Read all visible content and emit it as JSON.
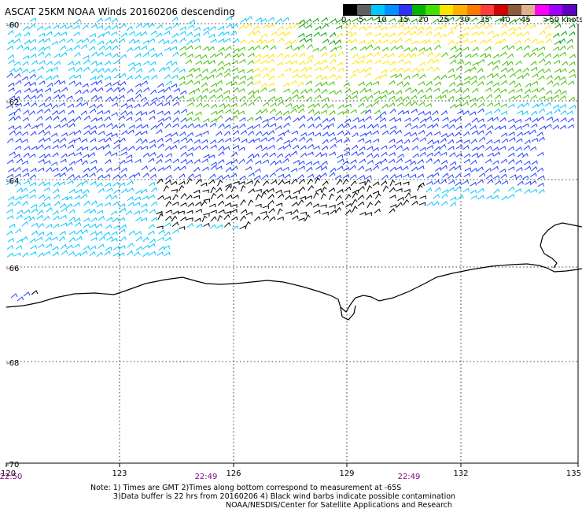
{
  "title": "ASCAT 25KM NOAA Winds 20160206 descending",
  "legend": {
    "colors": [
      "#000000",
      "#606060",
      "#00c8ff",
      "#0090ff",
      "#3030ff",
      "#00b400",
      "#40e000",
      "#ffe400",
      "#ffb000",
      "#ff7800",
      "#ff3c3c",
      "#d20000",
      "#8c5a3c",
      "#e0b090",
      "#ff00ff",
      "#a000ff",
      "#6000c0"
    ],
    "labels": [
      "0",
      "5",
      "10",
      "15",
      "20",
      "25",
      "30",
      "35",
      "40",
      "45",
      ">50 knots"
    ]
  },
  "axes": {
    "lat_labels": [
      "-60",
      "-62",
      "-64",
      "-66",
      "-68",
      "-70"
    ],
    "lon_labels": [
      "120",
      "123",
      "126",
      "129",
      "132",
      "135"
    ],
    "time_labels": [
      "22:50",
      "22:49",
      "22:49"
    ]
  },
  "notes": [
    "Note: 1) Times are GMT 2)Times along bottom correspond to measurement at -65S",
    "3)Data buffer is 22 hrs from 20160206 4) Black wind barbs indicate possible contamination",
    "NOAA/NESDIS/Center for Satellite Applications and Research"
  ],
  "colors": {
    "grid": "#000000",
    "coastline": "#000000",
    "time_label": "#800080"
  }
}
